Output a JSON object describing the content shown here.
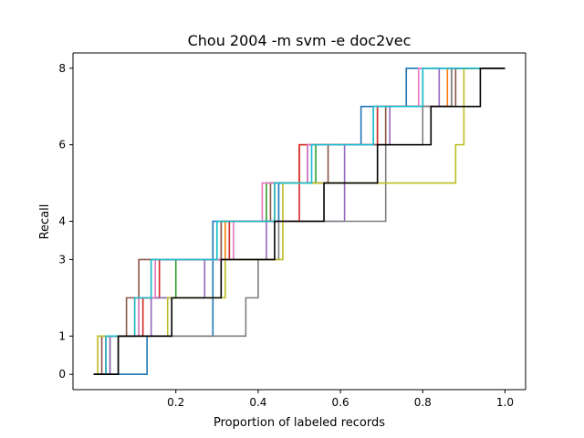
{
  "chart_data": {
    "type": "line",
    "title": "Chou 2004 -m svm -e doc2vec",
    "xlabel": "Proportion of labeled records",
    "ylabel": "Recall",
    "xlim": [
      -0.05,
      1.05
    ],
    "ylim": [
      -0.4,
      8.4
    ],
    "xticks": [
      0.2,
      0.4,
      0.6,
      0.8,
      1.0
    ],
    "xtick_labels": [
      "0.2",
      "0.4",
      "0.6",
      "0.8",
      "1.0"
    ],
    "yticks": [
      0,
      1,
      3,
      4,
      6,
      8
    ],
    "ytick_labels": [
      "0",
      "1",
      "3",
      "4",
      "6",
      "8"
    ],
    "x_steps": "post-step: y holds from each x to the next x",
    "grid": false,
    "series": [
      {
        "color": "#1f77b4",
        "x": [
          0.0,
          0.06,
          0.13,
          0.29,
          0.45,
          0.52,
          0.65,
          0.76,
          0.86,
          1.0
        ],
        "y": [
          0,
          0,
          1,
          4,
          5,
          6,
          7,
          8,
          8,
          8
        ]
      },
      {
        "color": "#ff7f0e",
        "x": [
          0.0,
          0.03,
          0.1,
          0.14,
          0.32,
          0.44,
          0.5,
          0.71,
          0.86,
          1.0
        ],
        "y": [
          0,
          1,
          2,
          3,
          4,
          5,
          6,
          7,
          8,
          8
        ]
      },
      {
        "color": "#2ca02c",
        "x": [
          0.0,
          0.04,
          0.11,
          0.2,
          0.31,
          0.42,
          0.54,
          0.69,
          0.8,
          1.0
        ],
        "y": [
          0,
          1,
          2,
          3,
          4,
          5,
          6,
          7,
          8,
          8
        ]
      },
      {
        "color": "#d62728",
        "x": [
          0.0,
          0.03,
          0.12,
          0.16,
          0.33,
          0.44,
          0.5,
          0.69,
          0.87,
          1.0
        ],
        "y": [
          0,
          1,
          2,
          3,
          4,
          4,
          6,
          7,
          8,
          8
        ]
      },
      {
        "color": "#9467bd",
        "x": [
          0.0,
          0.04,
          0.14,
          0.24,
          0.27,
          0.42,
          0.61,
          0.72,
          0.84,
          1.0
        ],
        "y": [
          0,
          1,
          2,
          2,
          3,
          4,
          6,
          7,
          8,
          8
        ]
      },
      {
        "color": "#8c564b",
        "x": [
          0.0,
          0.02,
          0.08,
          0.11,
          0.31,
          0.43,
          0.57,
          0.71,
          0.88,
          1.0
        ],
        "y": [
          0,
          1,
          2,
          3,
          4,
          5,
          6,
          7,
          8,
          8
        ]
      },
      {
        "color": "#e377c2",
        "x": [
          0.0,
          0.03,
          0.11,
          0.15,
          0.34,
          0.41,
          0.52,
          0.68,
          0.79,
          1.0
        ],
        "y": [
          0,
          1,
          2,
          3,
          4,
          5,
          6,
          7,
          8,
          8
        ]
      },
      {
        "color": "#7f7f7f",
        "x": [
          0.0,
          0.06,
          0.37,
          0.4,
          0.45,
          0.71,
          0.71,
          0.8,
          0.87,
          1.0
        ],
        "y": [
          0,
          1,
          2,
          3,
          4,
          5,
          6,
          7,
          8,
          8
        ]
      },
      {
        "color": "#bcbd22",
        "x": [
          0.0,
          0.01,
          0.18,
          0.32,
          0.46,
          0.79,
          0.88,
          0.9,
          0.95,
          1.0
        ],
        "y": [
          0,
          1,
          2,
          3,
          5,
          5,
          6,
          8,
          8,
          8
        ]
      },
      {
        "color": "#17becf",
        "x": [
          0.0,
          0.03,
          0.1,
          0.14,
          0.3,
          0.44,
          0.53,
          0.68,
          0.8,
          1.0
        ],
        "y": [
          0,
          1,
          2,
          3,
          4,
          5,
          6,
          7,
          8,
          8
        ]
      },
      {
        "color": "#000000",
        "bold": true,
        "x": [
          0.0,
          0.06,
          0.19,
          0.31,
          0.44,
          0.56,
          0.69,
          0.82,
          0.94,
          1.0
        ],
        "y": [
          0,
          1,
          2,
          3,
          4,
          5,
          6,
          7,
          8,
          8
        ]
      }
    ]
  }
}
